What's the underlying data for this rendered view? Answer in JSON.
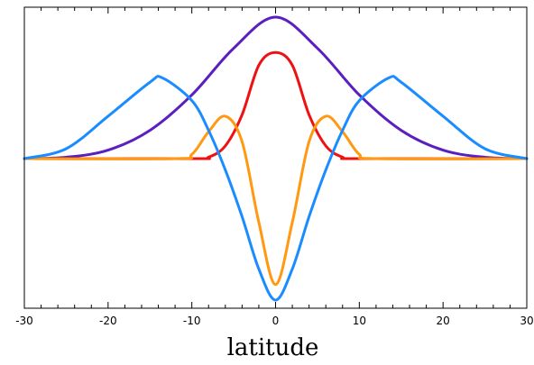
{
  "chart_data": {
    "type": "line",
    "title": "",
    "xlabel": "latitude",
    "ylabel": "",
    "xlim": [
      -30,
      30
    ],
    "ylim": [
      -1.0,
      1.0
    ],
    "x_ticks": [
      -30,
      -20,
      -10,
      0,
      10,
      20,
      30
    ],
    "x_tick_labels": [
      "-30",
      "-20",
      "-10",
      "0",
      "10",
      "20",
      "30"
    ],
    "y_ticks": [],
    "grid": false,
    "legend": "none",
    "series": [
      {
        "color": "#5b1fbf",
        "x": [
          -30,
          -25,
          -20,
          -15,
          -10,
          -5,
          0,
          5,
          10,
          15,
          20,
          25,
          30
        ],
        "y": [
          0.0,
          0.01,
          0.06,
          0.2,
          0.45,
          0.78,
          1.0,
          0.78,
          0.45,
          0.2,
          0.06,
          0.01,
          0.0
        ]
      },
      {
        "color": "#ee1111",
        "x": [
          -30,
          -10,
          -8,
          -6,
          -4,
          -2,
          0,
          2,
          4,
          6,
          8,
          10,
          30
        ],
        "y": [
          0.0,
          0.0,
          0.01,
          0.09,
          0.31,
          0.66,
          0.75,
          0.66,
          0.31,
          0.09,
          0.01,
          0.0,
          0.0
        ]
      },
      {
        "color": "#ff9911",
        "x": [
          -30,
          -12,
          -10,
          -8,
          -6,
          -4,
          -2,
          0,
          2,
          4,
          6,
          8,
          10,
          12,
          30
        ],
        "y": [
          0.0,
          0.0,
          0.03,
          0.19,
          0.3,
          0.12,
          -0.45,
          -0.89,
          -0.45,
          0.12,
          0.3,
          0.19,
          0.03,
          0.0,
          0.0
        ]
      },
      {
        "color": "#1a8cff",
        "x": [
          -30,
          -25,
          -20,
          -15,
          -13.5,
          -10,
          -8,
          -6,
          -4,
          -2,
          0,
          2,
          4,
          6,
          8,
          10,
          13.5,
          15,
          20,
          25,
          30
        ],
        "y": [
          0.0,
          0.07,
          0.3,
          0.54,
          0.57,
          0.41,
          0.2,
          -0.08,
          -0.41,
          -0.78,
          -1.0,
          -0.78,
          -0.41,
          -0.08,
          0.2,
          0.41,
          0.57,
          0.54,
          0.3,
          0.07,
          0.0
        ]
      }
    ]
  }
}
